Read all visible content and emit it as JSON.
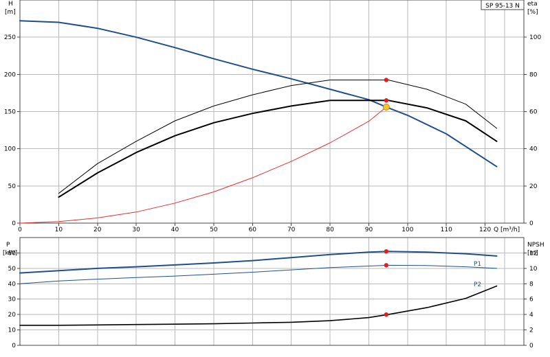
{
  "chart_data": [
    {
      "type": "line",
      "title": "SP 95-13 N",
      "xlabel": "Q [m³/h]",
      "ylabel_left_top": "H",
      "ylabel_left_unit": "[m]",
      "ylabel_right_top": "eta",
      "ylabel_right_unit": "[%]",
      "xlim": [
        0,
        130
      ],
      "ylim_left": [
        0,
        300
      ],
      "ylim_right": [
        0,
        120
      ],
      "x_ticks": [
        0,
        10,
        20,
        30,
        40,
        50,
        60,
        70,
        80,
        90,
        100,
        110,
        120
      ],
      "left_ticks": [
        0,
        50,
        100,
        150,
        200,
        250
      ],
      "right_ticks": [
        0,
        20,
        40,
        60,
        80,
        100
      ],
      "grid": true,
      "series": [
        {
          "axis": "left",
          "color": "#1f4e8c",
          "x": [
            0,
            10,
            20,
            30,
            40,
            50,
            60,
            70,
            80,
            90,
            95,
            100,
            110,
            123
          ],
          "values": [
            272,
            270,
            262,
            250,
            236,
            221,
            207,
            194,
            180,
            166,
            155,
            145,
            120,
            76
          ]
        },
        {
          "axis": "right",
          "color": "#000000",
          "x": [
            10,
            20,
            30,
            40,
            50,
            60,
            70,
            80,
            85,
            95,
            105,
            115,
            123
          ],
          "values": [
            16,
            32,
            44,
            55,
            63,
            69,
            74,
            77,
            77,
            77,
            72,
            64,
            51
          ]
        },
        {
          "axis": "right",
          "color": "#000000",
          "x": [
            10,
            20,
            30,
            40,
            50,
            60,
            70,
            80,
            85,
            95,
            105,
            115,
            123
          ],
          "values": [
            14,
            27,
            38,
            47,
            54,
            59,
            63,
            66,
            66,
            66,
            62,
            55,
            44
          ]
        },
        {
          "axis": "left",
          "color": "#e03030",
          "x": [
            0,
            10,
            20,
            30,
            40,
            50,
            60,
            70,
            80,
            90,
            94.5
          ],
          "values": [
            0,
            2,
            7,
            15,
            27,
            42,
            61,
            83,
            108,
            137,
            156
          ]
        }
      ],
      "markers": [
        {
          "axis": "right",
          "x": 94.5,
          "value": 77,
          "color": "#e02020"
        },
        {
          "axis": "right",
          "x": 94.5,
          "value": 66,
          "color": "#e02020"
        },
        {
          "axis": "left",
          "x": 94.5,
          "value": 156,
          "color": "#f2c82f"
        }
      ]
    },
    {
      "type": "line",
      "ylabel_left_top": "P",
      "ylabel_left_unit": "[kW]",
      "ylabel_right_top": "NPSH",
      "ylabel_right_unit": "[m]",
      "xlim": [
        0,
        130
      ],
      "ylim_left": [
        0,
        70
      ],
      "ylim_right": [
        0,
        14
      ],
      "left_ticks": [
        0,
        10,
        20,
        30,
        40,
        50,
        60
      ],
      "right_ticks": [
        0,
        2,
        4,
        6,
        8,
        10,
        12
      ],
      "grid": true,
      "series": [
        {
          "name": "P1",
          "axis": "left",
          "color": "#1f4e8c",
          "x": [
            0,
            10,
            20,
            30,
            40,
            50,
            60,
            70,
            80,
            90,
            95,
            105,
            115,
            123
          ],
          "values": [
            47,
            48.5,
            50,
            51,
            52.2,
            53.5,
            55,
            57,
            59,
            60.5,
            61,
            60.5,
            59.5,
            58
          ]
        },
        {
          "name": "P2",
          "axis": "left",
          "color": "#1f4e8c",
          "x": [
            0,
            10,
            20,
            30,
            40,
            50,
            60,
            70,
            80,
            90,
            95,
            105,
            115,
            123
          ],
          "values": [
            40,
            41.8,
            43,
            44,
            45,
            46.2,
            47.5,
            49,
            50.5,
            51.5,
            52,
            51.8,
            51,
            50
          ]
        },
        {
          "axis": "right",
          "color": "#000000",
          "x": [
            0,
            10,
            20,
            30,
            40,
            50,
            60,
            70,
            80,
            90,
            95,
            105,
            115,
            123
          ],
          "values": [
            2.6,
            2.6,
            2.65,
            2.7,
            2.75,
            2.8,
            2.9,
            3.0,
            3.2,
            3.6,
            4.0,
            4.9,
            6.1,
            7.7
          ]
        }
      ],
      "markers": [
        {
          "axis": "left",
          "x": 94.5,
          "value": 61,
          "color": "#e02020"
        },
        {
          "axis": "left",
          "x": 94.5,
          "value": 52,
          "color": "#e02020"
        },
        {
          "axis": "right",
          "x": 94.5,
          "value": 4.0,
          "color": "#e02020"
        }
      ]
    }
  ]
}
